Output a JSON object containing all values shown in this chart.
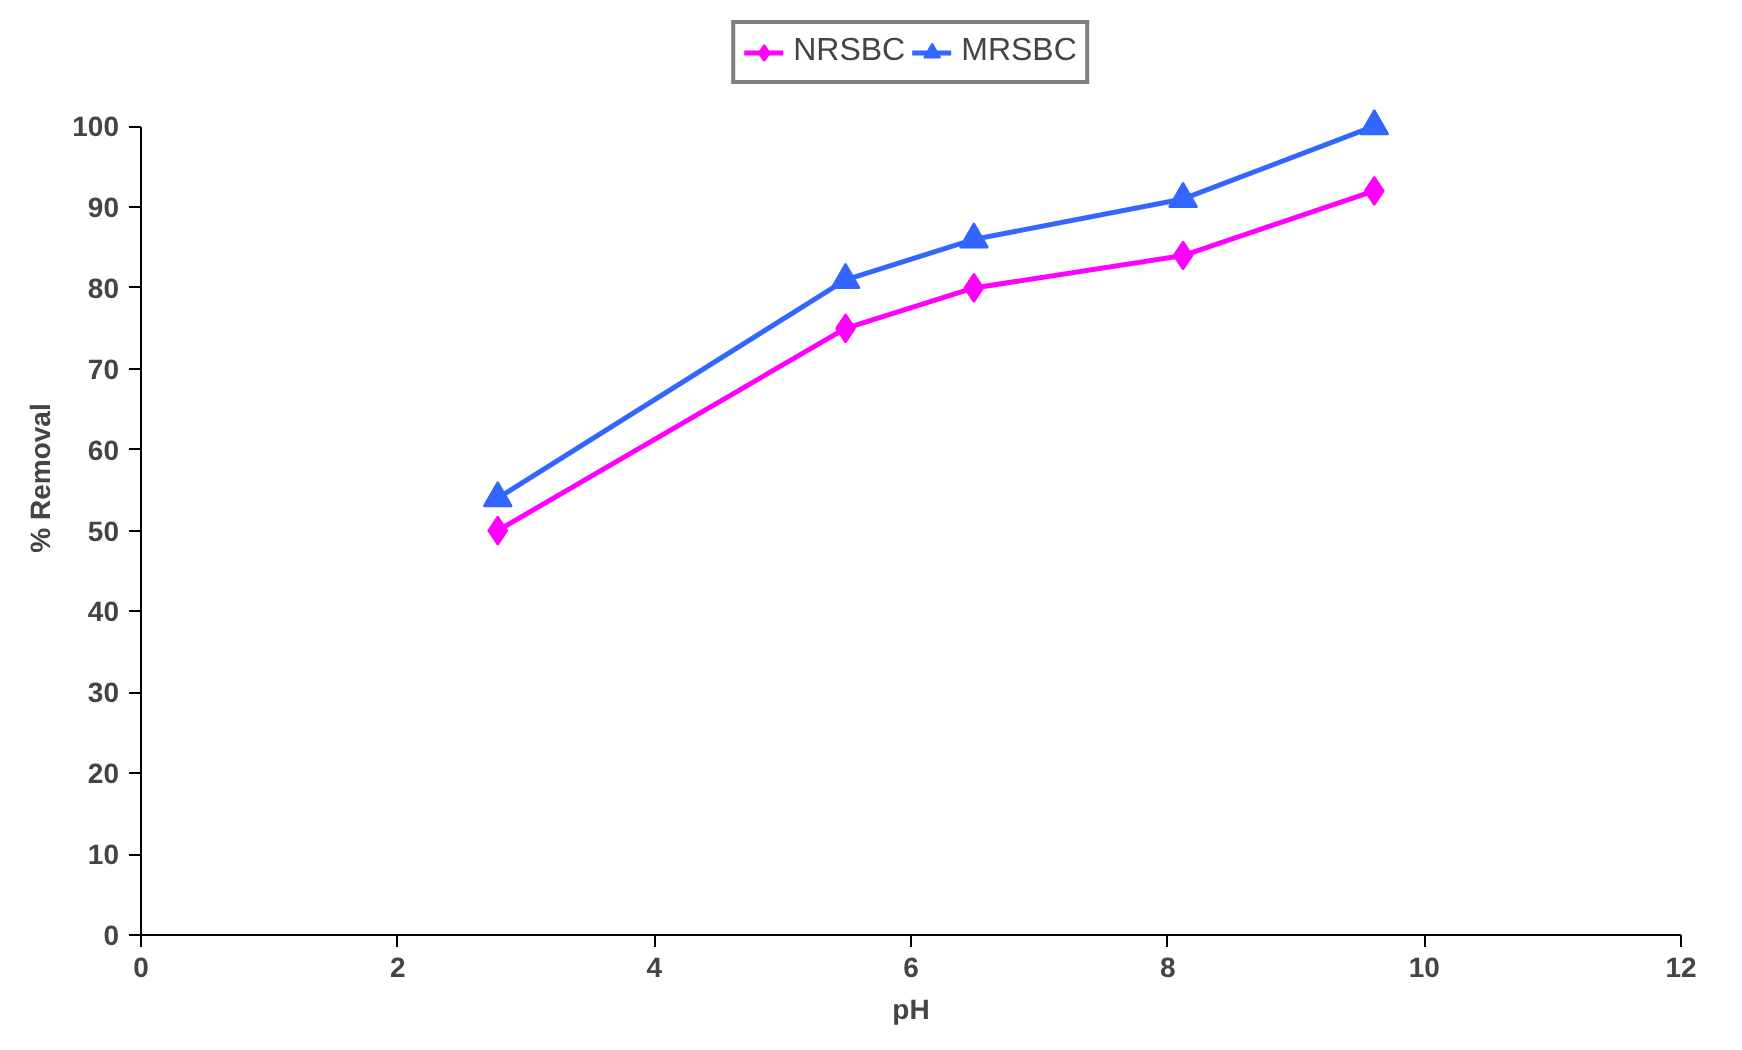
{
  "chart_data": {
    "type": "line",
    "xlabel": "pH",
    "ylabel": "% Removal",
    "x": [
      2.78,
      5.49,
      6.49,
      8.12,
      9.61
    ],
    "series": [
      {
        "name": "NRSBC",
        "color": "#ff00ff",
        "marker": "diamond",
        "values": [
          50,
          75,
          80,
          84,
          92
        ]
      },
      {
        "name": "MRSBC",
        "color": "#3366ff",
        "marker": "triangle",
        "values": [
          54,
          81,
          86,
          91,
          100
        ]
      }
    ],
    "xlim": [
      0,
      12
    ],
    "xticks": [
      0,
      2,
      4,
      6,
      8,
      10,
      12
    ],
    "ylim": [
      0,
      100
    ],
    "yticks": [
      0,
      10,
      20,
      30,
      40,
      50,
      60,
      70,
      80,
      90,
      100
    ],
    "grid": false,
    "legend": "top",
    "line_style": "solid"
  }
}
